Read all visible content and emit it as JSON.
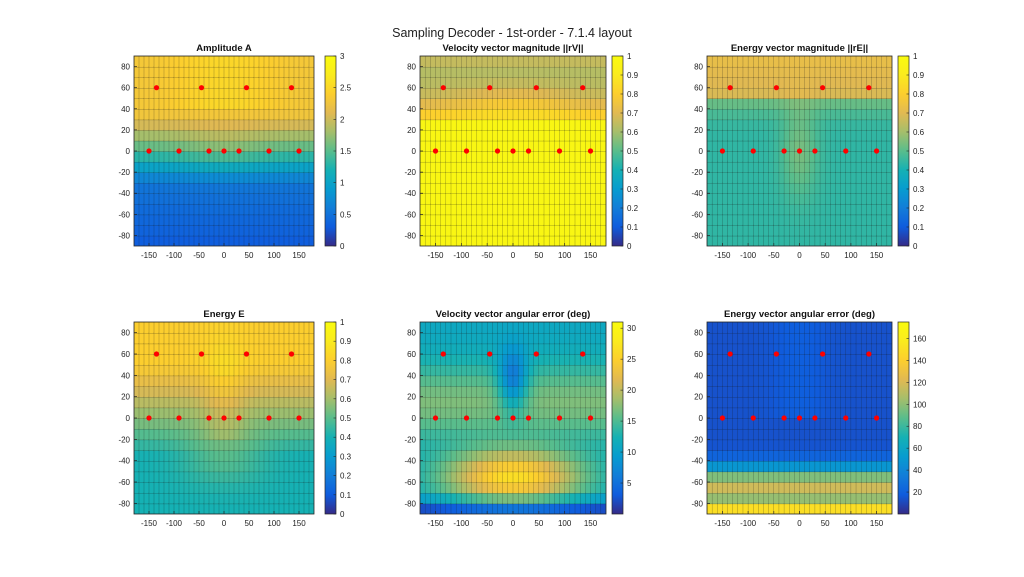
{
  "figure": {
    "title": "Sampling Decoder - 1st-order - 7.1.4 layout"
  },
  "chart_data": [
    {
      "type": "heatmap",
      "title": "Amplitude A",
      "xlim": [
        -180,
        180
      ],
      "ylim": [
        -90,
        90
      ],
      "xticks": [
        -150,
        -100,
        -50,
        0,
        50,
        100,
        150
      ],
      "yticks": [
        80,
        60,
        40,
        20,
        0,
        -20,
        -40,
        -60,
        -80
      ],
      "colorbar": {
        "limits": [
          0,
          3
        ],
        "ticks": [
          0,
          0.5,
          1,
          1.5,
          2,
          2.5,
          3
        ]
      },
      "grid": true,
      "field": "amplitude",
      "speakers": [
        [
          -135,
          60
        ],
        [
          -45,
          60
        ],
        [
          45,
          60
        ],
        [
          135,
          60
        ],
        [
          -150,
          0
        ],
        [
          -90,
          0
        ],
        [
          -30,
          0
        ],
        [
          0,
          0
        ],
        [
          30,
          0
        ],
        [
          90,
          0
        ],
        [
          150,
          0
        ]
      ]
    },
    {
      "type": "heatmap",
      "title": "Velocity vector magnitude ||rV||",
      "xlim": [
        -180,
        180
      ],
      "ylim": [
        -90,
        90
      ],
      "xticks": [
        -150,
        -100,
        -50,
        0,
        50,
        100,
        150
      ],
      "yticks": [
        80,
        60,
        40,
        20,
        0,
        -20,
        -40,
        -60,
        -80
      ],
      "colorbar": {
        "limits": [
          0,
          1
        ],
        "ticks": [
          0,
          0.1,
          0.2,
          0.3,
          0.4,
          0.5,
          0.6,
          0.7,
          0.8,
          0.9,
          1
        ]
      },
      "grid": true,
      "field": "rv",
      "speakers": [
        [
          -135,
          60
        ],
        [
          -45,
          60
        ],
        [
          45,
          60
        ],
        [
          135,
          60
        ],
        [
          -150,
          0
        ],
        [
          -90,
          0
        ],
        [
          -30,
          0
        ],
        [
          0,
          0
        ],
        [
          30,
          0
        ],
        [
          90,
          0
        ],
        [
          150,
          0
        ]
      ]
    },
    {
      "type": "heatmap",
      "title": "Energy vector magnitude ||rE||",
      "xlim": [
        -180,
        180
      ],
      "ylim": [
        -90,
        90
      ],
      "xticks": [
        -150,
        -100,
        -50,
        0,
        50,
        100,
        150
      ],
      "yticks": [
        80,
        60,
        40,
        20,
        0,
        -20,
        -40,
        -60,
        -80
      ],
      "colorbar": {
        "limits": [
          0,
          1
        ],
        "ticks": [
          0,
          0.1,
          0.2,
          0.3,
          0.4,
          0.5,
          0.6,
          0.7,
          0.8,
          0.9,
          1
        ]
      },
      "grid": true,
      "field": "re",
      "speakers": [
        [
          -135,
          60
        ],
        [
          -45,
          60
        ],
        [
          45,
          60
        ],
        [
          135,
          60
        ],
        [
          -150,
          0
        ],
        [
          -90,
          0
        ],
        [
          -30,
          0
        ],
        [
          0,
          0
        ],
        [
          30,
          0
        ],
        [
          90,
          0
        ],
        [
          150,
          0
        ]
      ]
    },
    {
      "type": "heatmap",
      "title": "Energy E",
      "xlim": [
        -180,
        180
      ],
      "ylim": [
        -90,
        90
      ],
      "xticks": [
        -150,
        -100,
        -50,
        0,
        50,
        100,
        150
      ],
      "yticks": [
        80,
        60,
        40,
        20,
        0,
        -20,
        -40,
        -60,
        -80
      ],
      "colorbar": {
        "limits": [
          0,
          1
        ],
        "ticks": [
          0,
          0.1,
          0.2,
          0.3,
          0.4,
          0.5,
          0.6,
          0.7,
          0.8,
          0.9,
          1
        ]
      },
      "grid": true,
      "field": "energy",
      "speakers": [
        [
          -135,
          60
        ],
        [
          -45,
          60
        ],
        [
          45,
          60
        ],
        [
          135,
          60
        ],
        [
          -150,
          0
        ],
        [
          -90,
          0
        ],
        [
          -30,
          0
        ],
        [
          0,
          0
        ],
        [
          30,
          0
        ],
        [
          90,
          0
        ],
        [
          150,
          0
        ]
      ]
    },
    {
      "type": "heatmap",
      "title": "Velocity vector angular error (deg)",
      "xlim": [
        -180,
        180
      ],
      "ylim": [
        -90,
        90
      ],
      "xticks": [
        -150,
        -100,
        -50,
        0,
        50,
        100,
        150
      ],
      "yticks": [
        80,
        60,
        40,
        20,
        0,
        -20,
        -40,
        -60,
        -80
      ],
      "colorbar": {
        "limits": [
          0,
          31
        ],
        "ticks": [
          5,
          10,
          15,
          20,
          25,
          30
        ]
      },
      "grid": true,
      "field": "verr",
      "speakers": [
        [
          -135,
          60
        ],
        [
          -45,
          60
        ],
        [
          45,
          60
        ],
        [
          135,
          60
        ],
        [
          -150,
          0
        ],
        [
          -90,
          0
        ],
        [
          -30,
          0
        ],
        [
          0,
          0
        ],
        [
          30,
          0
        ],
        [
          90,
          0
        ],
        [
          150,
          0
        ]
      ]
    },
    {
      "type": "heatmap",
      "title": "Energy vector angular error (deg)",
      "xlim": [
        -180,
        180
      ],
      "ylim": [
        -90,
        90
      ],
      "xticks": [
        -150,
        -100,
        -50,
        0,
        50,
        100,
        150
      ],
      "yticks": [
        80,
        60,
        40,
        20,
        0,
        -20,
        -40,
        -60,
        -80
      ],
      "colorbar": {
        "limits": [
          0,
          175
        ],
        "ticks": [
          20,
          40,
          60,
          80,
          100,
          120,
          140,
          160
        ]
      },
      "grid": true,
      "field": "eerr",
      "speakers": [
        [
          -135,
          60
        ],
        [
          -45,
          60
        ],
        [
          45,
          60
        ],
        [
          135,
          60
        ],
        [
          -150,
          0
        ],
        [
          -90,
          0
        ],
        [
          -30,
          0
        ],
        [
          0,
          0
        ],
        [
          30,
          0
        ],
        [
          90,
          0
        ],
        [
          150,
          0
        ]
      ]
    }
  ],
  "colors": {
    "speaker": "#ff0000",
    "grid": "#1a1a1a"
  }
}
